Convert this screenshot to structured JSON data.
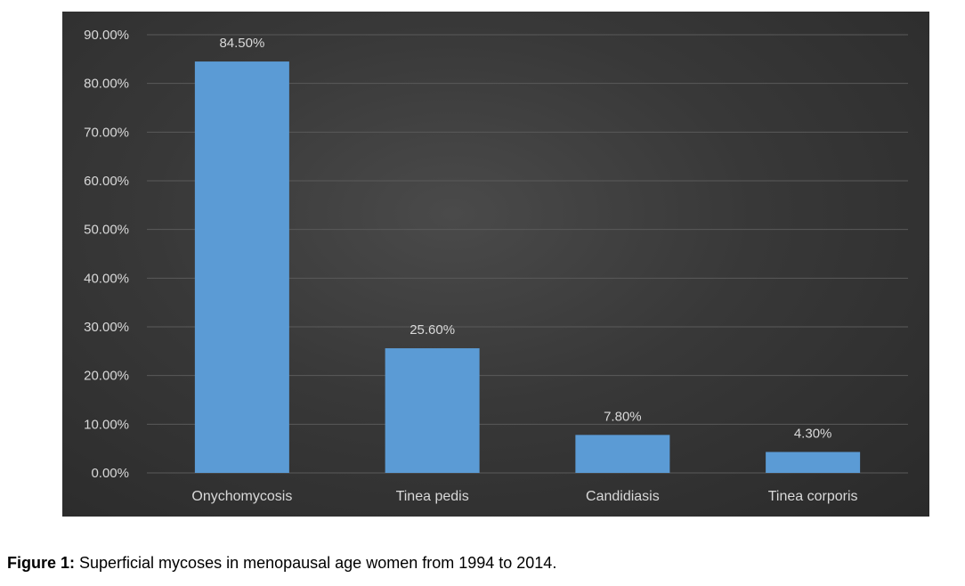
{
  "chart_data": {
    "type": "bar",
    "categories": [
      "Onychomycosis",
      "Tinea pedis",
      "Candidiasis",
      "Tinea corporis"
    ],
    "values": [
      84.5,
      25.6,
      7.8,
      4.3
    ],
    "data_labels": [
      "84.50%",
      "25.60%",
      "7.80%",
      "4.30%"
    ],
    "yticks": [
      "0.00%",
      "10.00%",
      "20.00%",
      "30.00%",
      "40.00%",
      "50.00%",
      "60.00%",
      "70.00%",
      "80.00%",
      "90.00%"
    ],
    "ylim": [
      0,
      90
    ],
    "grid": true,
    "legend": "none",
    "title": "",
    "xlabel": "",
    "ylabel": "",
    "colors": {
      "background": "#383838",
      "bar": "#5b9bd5",
      "gridline": "#5a5a5a",
      "text": "#d9d9d9"
    }
  },
  "caption": {
    "label": "Figure 1:",
    "text": " Superficial mycoses in menopausal age women from 1994 to 2014."
  }
}
